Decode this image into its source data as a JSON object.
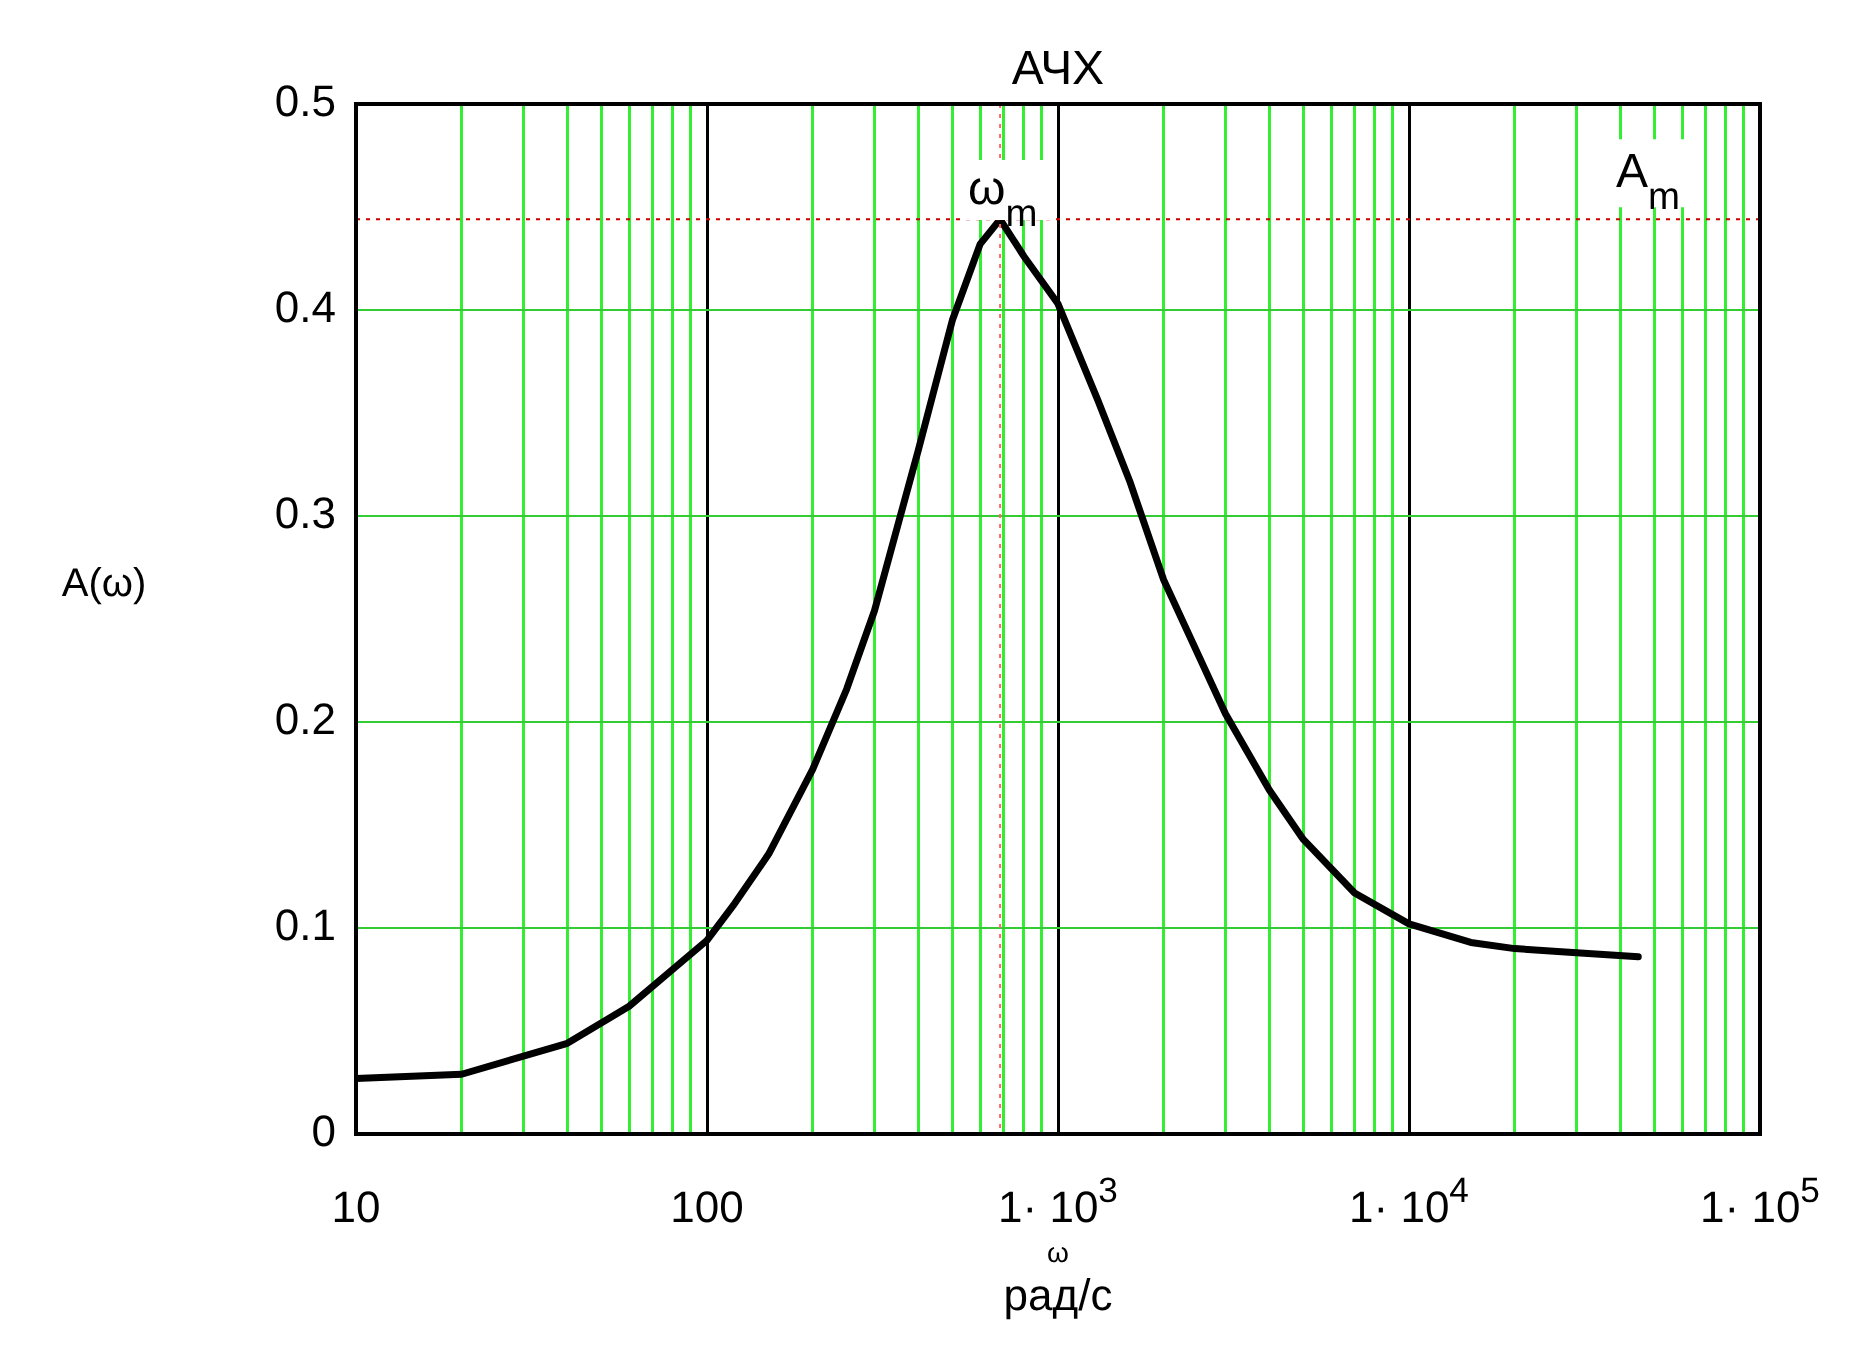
{
  "chart_data": {
    "type": "line",
    "title": "АЧХ",
    "xlabel": "ω\nрад/с",
    "ylabel": "A(ω)",
    "x": [
      10,
      20,
      40,
      60,
      80,
      100,
      120,
      150,
      200,
      250,
      300,
      400,
      500,
      600,
      684,
      800,
      1000,
      1300,
      1600,
      2000,
      3000,
      4000,
      5000,
      7000,
      10000,
      15000,
      20000,
      30000,
      45000
    ],
    "series": [
      {
        "color": "#000000",
        "values": [
          0.027,
          0.029,
          0.044,
          0.062,
          0.08,
          0.094,
          0.112,
          0.136,
          0.177,
          0.216,
          0.254,
          0.332,
          0.395,
          0.432,
          0.444,
          0.426,
          0.403,
          0.356,
          0.317,
          0.269,
          0.204,
          0.167,
          0.143,
          0.117,
          0.102,
          0.093,
          0.09,
          0.088,
          0.086
        ]
      }
    ],
    "log": "x",
    "xlim": [
      10,
      100000
    ],
    "xticks": [
      10,
      {
        "value": 20,
        "label": null
      },
      {
        "value": 30,
        "label": null
      },
      {
        "value": 40,
        "label": null
      },
      {
        "value": 50,
        "label": null
      },
      {
        "value": 60,
        "label": null
      },
      {
        "value": 70,
        "label": null
      },
      {
        "value": 80,
        "label": null
      },
      {
        "value": 90,
        "label": null
      },
      100,
      {
        "value": 200,
        "label": null
      },
      {
        "value": 300,
        "label": null
      },
      {
        "value": 400,
        "label": null
      },
      {
        "value": 500,
        "label": null
      },
      {
        "value": 600,
        "label": null
      },
      {
        "value": 700,
        "label": null
      },
      {
        "value": 800,
        "label": null
      },
      {
        "value": 900,
        "label": null
      },
      {
        "value": 1000,
        "label": "1· 10$^{3}$"
      },
      {
        "value": 2000,
        "label": null
      },
      {
        "value": 3000,
        "label": null
      },
      {
        "value": 4000,
        "label": null
      },
      {
        "value": 5000,
        "label": null
      },
      {
        "value": 6000,
        "label": null
      },
      {
        "value": 7000,
        "label": null
      },
      {
        "value": 8000,
        "label": null
      },
      {
        "value": 9000,
        "label": null
      },
      {
        "value": 10000,
        "label": "1· 10$^{4}$"
      },
      {
        "value": 20000,
        "label": null
      },
      {
        "value": 30000,
        "label": null
      },
      {
        "value": 40000,
        "label": null
      },
      {
        "value": 50000,
        "label": null
      },
      {
        "value": 60000,
        "label": null
      },
      {
        "value": 70000,
        "label": null
      },
      {
        "value": 80000,
        "label": null
      },
      {
        "value": 90000,
        "label": null
      },
      {
        "value": 100000,
        "label": "1· 10$^{5}$"
      }
    ],
    "ylim": [
      0,
      0.5
    ],
    "yticks": [
      0,
      0.1,
      0.2,
      0.3,
      0.4,
      0.5
    ],
    "grid": true,
    "ref_lines": [
      {
        "axis": "y",
        "value": 0.444,
        "label": "A$_{m}$",
        "color": "#cc0000",
        "line_style": "dotted"
      },
      {
        "axis": "x",
        "value": 684,
        "label": "ω$_{m}$",
        "color": "#ff6666",
        "line_style": "dotted"
      }
    ]
  }
}
